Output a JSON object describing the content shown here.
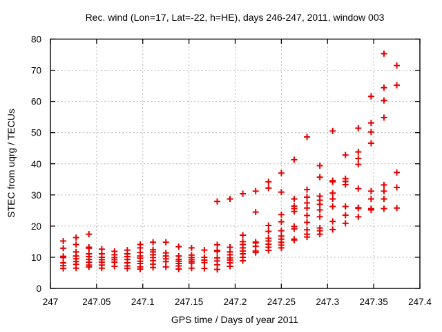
{
  "chart_data": {
    "type": "scatter",
    "title": "Rec. wind (Lon=17, Lat=-22, h=HE), days 246-247, 2011, window 003",
    "xlabel": "GPS time / Days of year 2011",
    "ylabel": "STEC from uqrg / TECUs",
    "xlim": [
      247.0,
      247.4
    ],
    "ylim": [
      0,
      80
    ],
    "xticks": [
      247.0,
      247.05,
      247.1,
      247.15,
      247.2,
      247.25,
      247.3,
      247.35,
      247.4
    ],
    "xtick_labels": [
      "247",
      "247.05",
      "247.1",
      "247.15",
      "247.2",
      "247.25",
      "247.3",
      "247.35",
      "247.4"
    ],
    "yticks": [
      0,
      10,
      20,
      30,
      40,
      50,
      60,
      70,
      80
    ],
    "ytick_labels": [
      "0",
      "10",
      "20",
      "30",
      "40",
      "50",
      "60",
      "70",
      "80"
    ],
    "grid": true,
    "legend": "none",
    "marker": "plus",
    "marker_color": "#e60000",
    "grid_color": "#b0b0b0",
    "frame_color": "#000000",
    "series": [
      {
        "name": "STEC from uqrg",
        "columns": [
          {
            "x": 247.0139,
            "ys": [
              15.2,
              12.9,
              10.3,
              9.9,
              8.2,
              7.3,
              6.4
            ]
          },
          {
            "x": 247.0278,
            "ys": [
              16.3,
              14.1,
              11.7,
              10.4,
              9.5,
              8.6,
              7.7,
              6.5
            ]
          },
          {
            "x": 247.0417,
            "ys": [
              17.4,
              13.2,
              12.9,
              11.1,
              10.2,
              9.3,
              8.4,
              7.5,
              6.9
            ]
          },
          {
            "x": 247.0556,
            "ys": [
              12.6,
              11.1,
              10.0,
              9.2,
              8.4,
              7.5,
              6.5
            ]
          },
          {
            "x": 247.0694,
            "ys": [
              11.9,
              10.8,
              9.9,
              9.2,
              8.4,
              7.1
            ]
          },
          {
            "x": 247.0833,
            "ys": [
              12.3,
              11.1,
              10.2,
              9.3,
              8.2,
              7.2,
              6.4
            ]
          },
          {
            "x": 247.0972,
            "ys": [
              14.1,
              13.0,
              11.5,
              10.4,
              9.7,
              8.7,
              8.0,
              6.9,
              6.2
            ]
          },
          {
            "x": 247.1111,
            "ys": [
              14.8,
              12.4,
              11.7,
              10.8,
              9.9,
              8.9,
              7.8,
              6.7
            ]
          },
          {
            "x": 247.125,
            "ys": [
              14.8,
              11.4,
              10.4,
              9.5,
              8.6,
              6.9
            ]
          },
          {
            "x": 247.1389,
            "ys": [
              13.4,
              10.4,
              9.3,
              8.7,
              8.0,
              7.2,
              6.2
            ]
          },
          {
            "x": 247.1528,
            "ys": [
              13.0,
              10.7,
              9.9,
              9.2,
              8.6,
              8.1,
              6.5
            ]
          },
          {
            "x": 247.1667,
            "ys": [
              12.3,
              10.0,
              9.1,
              8.3,
              6.4
            ]
          },
          {
            "x": 247.1806,
            "ys": [
              27.9,
              14.0,
              12.2,
              11.9,
              9.8,
              8.8,
              7.6,
              6.1
            ]
          },
          {
            "x": 247.1944,
            "ys": [
              28.7,
              13.2,
              11.7,
              10.8,
              9.8,
              9.1,
              8.2,
              7.1
            ]
          },
          {
            "x": 247.2083,
            "ys": [
              30.4,
              17.1,
              15.0,
              14.1,
              13.0,
              12.0,
              11.1,
              10.0,
              8.9
            ]
          },
          {
            "x": 247.2222,
            "ys": [
              31.2,
              24.5,
              14.9,
              14.6,
              13.5,
              12.0,
              11.5
            ]
          },
          {
            "x": 247.2361,
            "ys": [
              34.2,
              32.2,
              20.2,
              18.3,
              16.1,
              15.2,
              14.2,
              13.2,
              12.2
            ]
          },
          {
            "x": 247.25,
            "ys": [
              37.0,
              30.9,
              23.7,
              21.4,
              18.5,
              16.8,
              15.8,
              14.8,
              13.9,
              13.0
            ]
          },
          {
            "x": 247.2639,
            "ys": [
              41.3,
              28.7,
              26.4,
              25.6,
              24.7,
              19.9,
              19.1,
              15.8,
              15.5
            ]
          },
          {
            "x": 247.2778,
            "ys": [
              48.6,
              31.7,
              29.3,
              27.4,
              25.8,
              23.4,
              21.2,
              18.8,
              17.4,
              16.5
            ]
          },
          {
            "x": 247.2917,
            "ys": [
              39.4,
              35.7,
              29.6,
              28.3,
              27.0,
              25.2,
              23.0,
              19.4,
              18.5,
              17.4
            ]
          },
          {
            "x": 247.3056,
            "ys": [
              50.5,
              34.6,
              34.2,
              30.6,
              28.7,
              26.3,
              21.5,
              18.9
            ]
          },
          {
            "x": 247.3194,
            "ys": [
              42.8,
              35.2,
              34.3,
              33.3,
              26.3,
              23.5,
              20.9
            ]
          },
          {
            "x": 247.3333,
            "ys": [
              51.4,
              43.8,
              41.7,
              39.8,
              32.0,
              25.9,
              25.7,
              23.0
            ]
          },
          {
            "x": 247.3472,
            "ys": [
              61.6,
              53.1,
              50.2,
              46.6,
              31.2,
              28.7,
              25.6,
              25.2
            ]
          },
          {
            "x": 247.3611,
            "ys": [
              75.3,
              64.4,
              60.3,
              54.8,
              33.2,
              31.2,
              28.7,
              25.6
            ]
          },
          {
            "x": 247.375,
            "ys": [
              71.5,
              65.2,
              37.2,
              32.4,
              25.8
            ]
          }
        ]
      }
    ]
  }
}
